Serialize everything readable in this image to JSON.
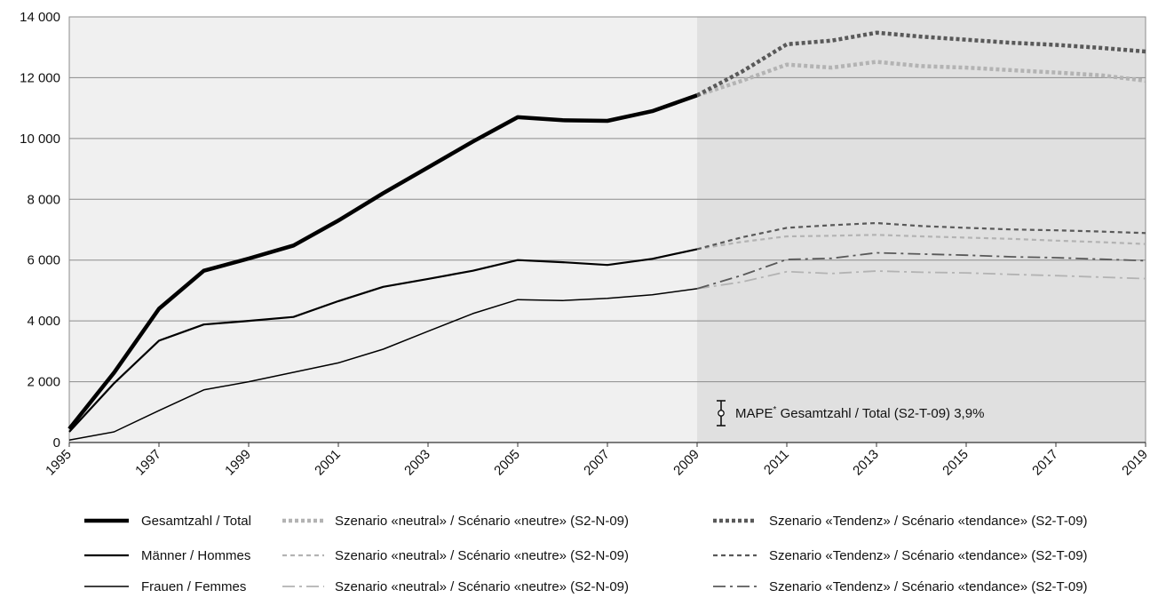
{
  "chart_data": {
    "type": "line",
    "title": "",
    "xlabel": "",
    "ylabel": "",
    "xlim": [
      1995,
      2019
    ],
    "ylim": [
      0,
      14000
    ],
    "y_ticks": [
      0,
      2000,
      4000,
      6000,
      8000,
      10000,
      12000,
      14000
    ],
    "y_tick_labels": [
      "0",
      "2 000",
      "4 000",
      "6 000",
      "8 000",
      "10 000",
      "12 000",
      "14 000"
    ],
    "x_ticks": [
      1995,
      1997,
      1999,
      2001,
      2003,
      2005,
      2007,
      2009,
      2011,
      2013,
      2015,
      2017,
      2019
    ],
    "x_tick_labels": [
      "1995",
      "1997",
      "1999",
      "2001",
      "2003",
      "2005",
      "2007",
      "2009",
      "2011",
      "2013",
      "2015",
      "2017",
      "2019"
    ],
    "grid": true,
    "forecast_region": {
      "from": 2009,
      "to": 2019
    },
    "colors": {
      "history_bg": "#f0f0f0",
      "forecast_bg": "#e0e0e0",
      "black": "#000000",
      "dark_gray": "#595959",
      "light_gray": "#b3b3b3"
    },
    "series": [
      {
        "name": "Gesamtzahl / Total",
        "group": "total",
        "style": "solid-thick",
        "x": [
          1995,
          1996,
          1997,
          1998,
          1999,
          2000,
          2001,
          2002,
          2003,
          2004,
          2005,
          2006,
          2007,
          2008,
          2009
        ],
        "y": [
          450,
          2300,
          4400,
          5650,
          6050,
          6480,
          7300,
          8200,
          9050,
          9900,
          10700,
          10600,
          10580,
          10900,
          11420
        ]
      },
      {
        "name": "Männer / Hommes",
        "group": "men",
        "style": "solid-medium",
        "x": [
          1995,
          1996,
          1997,
          1998,
          1999,
          2000,
          2001,
          2002,
          2003,
          2004,
          2005,
          2006,
          2007,
          2008,
          2009
        ],
        "y": [
          350,
          1950,
          3350,
          3880,
          4000,
          4130,
          4650,
          5120,
          5380,
          5650,
          6000,
          5930,
          5840,
          6040,
          6360
        ]
      },
      {
        "name": "Frauen / Femmes",
        "group": "women",
        "style": "solid-thin",
        "x": [
          1995,
          1996,
          1997,
          1998,
          1999,
          2000,
          2001,
          2002,
          2003,
          2004,
          2005,
          2006,
          2007,
          2008,
          2009
        ],
        "y": [
          80,
          350,
          1050,
          1730,
          2000,
          2310,
          2620,
          3070,
          3660,
          4240,
          4700,
          4670,
          4740,
          4860,
          5060
        ]
      },
      {
        "name": "Szenario «neutral» / Scénario «neutre» (S2-N-09)",
        "group": "total",
        "style": "dotted-thick-light",
        "x": [
          2009,
          2010,
          2011,
          2012,
          2013,
          2014,
          2015,
          2016,
          2017,
          2018,
          2019
        ],
        "y": [
          11420,
          11900,
          12430,
          12330,
          12520,
          12380,
          12330,
          12250,
          12170,
          12080,
          11900
        ]
      },
      {
        "name": "Szenario «neutral» / Scénario «neutre» (S2-N-09)",
        "group": "men",
        "style": "dashed-medium-light",
        "x": [
          2009,
          2010,
          2011,
          2012,
          2013,
          2014,
          2015,
          2016,
          2017,
          2018,
          2019
        ],
        "y": [
          6360,
          6600,
          6780,
          6800,
          6830,
          6780,
          6740,
          6700,
          6640,
          6590,
          6530
        ]
      },
      {
        "name": "Szenario «neutral» / Scénario «neutre» (S2-N-09)",
        "group": "women",
        "style": "dashdot-thin-light",
        "x": [
          2009,
          2010,
          2011,
          2012,
          2013,
          2014,
          2015,
          2016,
          2017,
          2018,
          2019
        ],
        "y": [
          5060,
          5280,
          5620,
          5560,
          5640,
          5600,
          5580,
          5530,
          5490,
          5440,
          5390
        ]
      },
      {
        "name": "Szenario «Tendenz» / Scénario «tendance» (S2-T-09)",
        "group": "total",
        "style": "dotted-thick-dark",
        "x": [
          2009,
          2010,
          2011,
          2012,
          2013,
          2014,
          2015,
          2016,
          2017,
          2018,
          2019
        ],
        "y": [
          11420,
          12200,
          13100,
          13220,
          13480,
          13350,
          13250,
          13150,
          13080,
          12980,
          12860
        ]
      },
      {
        "name": "Szenario «Tendenz» / Scénario «tendance» (S2-T-09)",
        "group": "men",
        "style": "dashed-medium-dark",
        "x": [
          2009,
          2010,
          2011,
          2012,
          2013,
          2014,
          2015,
          2016,
          2017,
          2018,
          2019
        ],
        "y": [
          6360,
          6750,
          7060,
          7150,
          7220,
          7120,
          7060,
          7010,
          6980,
          6940,
          6890
        ]
      },
      {
        "name": "Szenario «Tendenz» / Scénario «tendance» (S2-T-09)",
        "group": "women",
        "style": "dashdot-thin-dark",
        "x": [
          2009,
          2010,
          2011,
          2012,
          2013,
          2014,
          2015,
          2016,
          2017,
          2018,
          2019
        ],
        "y": [
          5060,
          5500,
          6020,
          6060,
          6240,
          6200,
          6160,
          6110,
          6080,
          6030,
          5980
        ]
      }
    ],
    "annotation": {
      "main": "MAPE",
      "superscript": "*",
      "rest": " Gesamtzahl / Total (S2-T-09) 3,9%",
      "x": 2010,
      "y": 1000
    },
    "legend": {
      "placement": "bottom",
      "rows": [
        [
          {
            "label": "Gesamtzahl / Total",
            "style": "solid-thick"
          },
          {
            "label": "Szenario «neutral» / Scénario «neutre» (S2-N-09)",
            "style": "dotted-thick-light"
          },
          {
            "label": "Szenario «Tendenz» / Scénario «tendance» (S2-T-09)",
            "style": "dotted-thick-dark"
          }
        ],
        [
          {
            "label": "Männer / Hommes",
            "style": "solid-medium"
          },
          {
            "label": "Szenario «neutral» / Scénario «neutre» (S2-N-09)",
            "style": "dashed-medium-light"
          },
          {
            "label": "Szenario «Tendenz» / Scénario «tendance» (S2-T-09)",
            "style": "dashed-medium-dark"
          }
        ],
        [
          {
            "label": "Frauen / Femmes",
            "style": "solid-thin"
          },
          {
            "label": "Szenario «neutral» / Scénario «neutre» (S2-N-09)",
            "style": "dashdot-thin-light"
          },
          {
            "label": "Szenario «Tendenz» / Scénario «tendance» (S2-T-09)",
            "style": "dashdot-thin-dark"
          }
        ]
      ]
    }
  }
}
